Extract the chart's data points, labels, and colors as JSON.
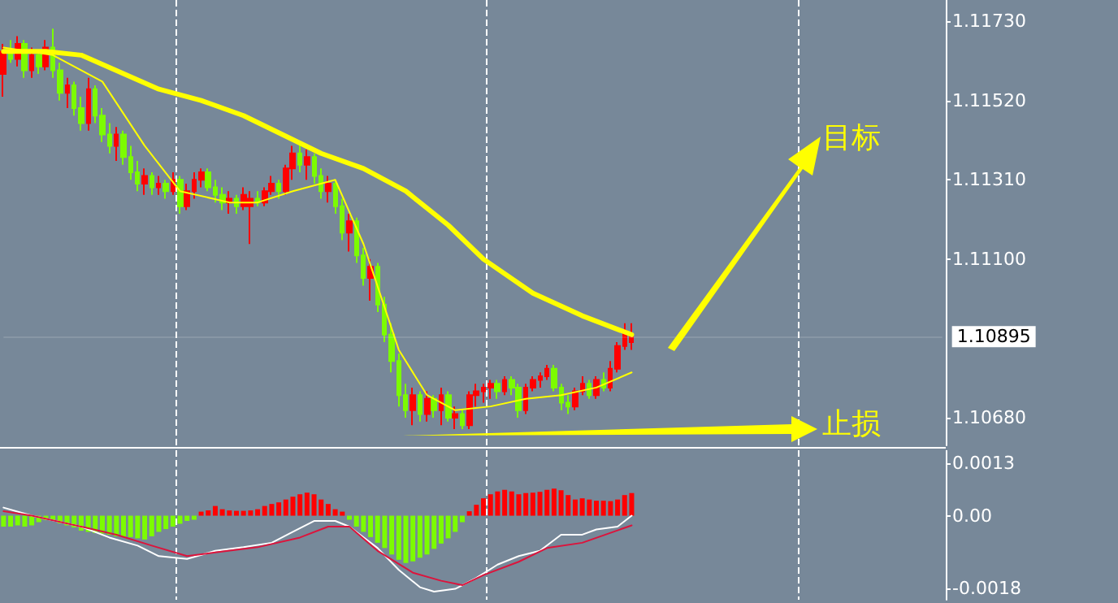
{
  "chart_data": [
    {
      "type": "candlestick",
      "categories": [
        null,
        null,
        null,
        null,
        null,
        null,
        null,
        null,
        null,
        null,
        null,
        null,
        null,
        null,
        null,
        null,
        null,
        null,
        null,
        null,
        null,
        null,
        null,
        null,
        null,
        null,
        null,
        null,
        null,
        null,
        null,
        null,
        null,
        null,
        null,
        null,
        null,
        null,
        null,
        null,
        null,
        null,
        null,
        null,
        null,
        null,
        null,
        null,
        null,
        null,
        null,
        null,
        null,
        null,
        null,
        null,
        null,
        null,
        null,
        null,
        null,
        null,
        null,
        null,
        null,
        null,
        null,
        null,
        null,
        null,
        null,
        null,
        null,
        null,
        null,
        null,
        null,
        null,
        null,
        null,
        null,
        null,
        null,
        null,
        null,
        null,
        null,
        null,
        null,
        null,
        null,
        null,
        null,
        null,
        null,
        null,
        null,
        null,
        null,
        null,
        null,
        null,
        null,
        null,
        null,
        null,
        null,
        null,
        null,
        null,
        null,
        null,
        null,
        null,
        null,
        null,
        null,
        null,
        null,
        null,
        null,
        null,
        null,
        null,
        null,
        null,
        null,
        null,
        null,
        null,
        null,
        null,
        null,
        null
      ],
      "ohlc": [
        [
          1.1159,
          1.1167,
          1.1153,
          1.1165
        ],
        [
          1.1165,
          1.1168,
          1.1162,
          1.1163
        ],
        [
          1.1163,
          1.1169,
          1.1161,
          1.1167
        ],
        [
          1.1167,
          1.1168,
          1.1158,
          1.116
        ],
        [
          1.116,
          1.1166,
          1.1158,
          1.1164
        ],
        [
          1.1164,
          1.1165,
          1.1159,
          1.1161
        ],
        [
          1.1161,
          1.1168,
          1.116,
          1.1166
        ],
        [
          1.1166,
          1.1171,
          1.1158,
          1.116
        ],
        [
          1.116,
          1.1162,
          1.1152,
          1.1154
        ],
        [
          1.1154,
          1.1158,
          1.115,
          1.1156
        ],
        [
          1.1156,
          1.1157,
          1.1148,
          1.115
        ],
        [
          1.115,
          1.1153,
          1.1144,
          1.1146
        ],
        [
          1.1146,
          1.1158,
          1.1144,
          1.1155
        ],
        [
          1.1155,
          1.1156,
          1.1146,
          1.1148
        ],
        [
          1.1148,
          1.115,
          1.1141,
          1.1143
        ],
        [
          1.1143,
          1.1146,
          1.1138,
          1.114
        ],
        [
          1.114,
          1.1145,
          1.1136,
          1.1143
        ],
        [
          1.1143,
          1.1144,
          1.1135,
          1.1137
        ],
        [
          1.1137,
          1.114,
          1.1131,
          1.1133
        ],
        [
          1.1133,
          1.1136,
          1.1128,
          1.113
        ],
        [
          1.113,
          1.1134,
          1.1127,
          1.1132
        ],
        [
          1.1132,
          1.1133,
          1.1127,
          1.1129
        ],
        [
          1.1129,
          1.1132,
          1.1127,
          1.113
        ],
        [
          1.113,
          1.1131,
          1.1126,
          1.1128
        ],
        [
          1.1128,
          1.1133,
          1.1127,
          1.1131
        ],
        [
          1.1131,
          1.1132,
          1.1122,
          1.1124
        ],
        [
          1.1124,
          1.113,
          1.1123,
          1.1128
        ],
        [
          1.1128,
          1.1133,
          1.1126,
          1.1131
        ],
        [
          1.1131,
          1.1134,
          1.1129,
          1.1133
        ],
        [
          1.1133,
          1.1134,
          1.1128,
          1.1129
        ],
        [
          1.1129,
          1.1131,
          1.1125,
          1.1127
        ],
        [
          1.1127,
          1.1129,
          1.1123,
          1.1125
        ],
        [
          1.1125,
          1.1128,
          1.1122,
          1.1126
        ],
        [
          1.1126,
          1.1127,
          1.1122,
          1.1124
        ],
        [
          1.1124,
          1.1129,
          1.1123,
          1.1127
        ],
        [
          1.1124,
          1.1128,
          1.1114,
          1.1126
        ],
        [
          1.1126,
          1.1128,
          1.1124,
          1.1125
        ],
        [
          1.1125,
          1.1129,
          1.1124,
          1.1128
        ],
        [
          1.1128,
          1.1132,
          1.1127,
          1.113
        ],
        [
          1.113,
          1.1131,
          1.1126,
          1.1128
        ],
        [
          1.1128,
          1.1135,
          1.1127,
          1.1134
        ],
        [
          1.1134,
          1.114,
          1.1131,
          1.1138
        ],
        [
          1.1138,
          1.1141,
          1.1133,
          1.1135
        ],
        [
          1.1135,
          1.1139,
          1.1131,
          1.1137
        ],
        [
          1.1137,
          1.1138,
          1.113,
          1.1132
        ],
        [
          1.1132,
          1.1134,
          1.1126,
          1.1128
        ],
        [
          1.1128,
          1.1132,
          1.1125,
          1.113
        ],
        [
          1.113,
          1.1131,
          1.1122,
          1.1124
        ],
        [
          1.1124,
          1.1126,
          1.1115,
          1.1117
        ],
        [
          1.1117,
          1.1122,
          1.1112,
          1.112
        ],
        [
          1.112,
          1.1121,
          1.1109,
          1.1111
        ],
        [
          1.1111,
          1.1113,
          1.1103,
          1.1105
        ],
        [
          1.1105,
          1.111,
          1.1099,
          1.1108
        ],
        [
          1.1108,
          1.1109,
          1.1096,
          1.1098
        ],
        [
          1.1098,
          1.11,
          1.1088,
          1.109
        ],
        [
          1.109,
          1.1093,
          1.108,
          1.1083
        ],
        [
          1.1083,
          1.1085,
          1.1071,
          1.1074
        ],
        [
          1.1074,
          1.1077,
          1.1068,
          1.107
        ],
        [
          1.107,
          1.1076,
          1.1066,
          1.1074
        ],
        [
          1.1074,
          1.1075,
          1.1067,
          1.1069
        ],
        [
          1.1069,
          1.1075,
          1.1067,
          1.1073
        ],
        [
          1.1073,
          1.1074,
          1.1068,
          1.107
        ],
        [
          1.107,
          1.1076,
          1.1066,
          1.1074
        ],
        [
          1.1074,
          1.1075,
          1.1067,
          1.1068
        ],
        [
          1.1068,
          1.1071,
          1.1065,
          1.1069
        ],
        [
          1.1069,
          1.107,
          1.1065,
          1.1066
        ],
        [
          1.1066,
          1.1075,
          1.1065,
          1.1074
        ],
        [
          1.1074,
          1.1077,
          1.1071,
          1.1075
        ],
        [
          1.1075,
          1.1077,
          1.1072,
          1.1076
        ],
        [
          1.1076,
          1.1078,
          1.1073,
          1.1077
        ],
        [
          1.1077,
          1.1078,
          1.1073,
          1.1075
        ],
        [
          1.1075,
          1.1079,
          1.1074,
          1.1078
        ],
        [
          1.1078,
          1.1079,
          1.1074,
          1.1076
        ],
        [
          1.1076,
          1.1077,
          1.1068,
          1.107
        ],
        [
          1.107,
          1.1077,
          1.1069,
          1.1076
        ],
        [
          1.1076,
          1.1079,
          1.1075,
          1.1078
        ],
        [
          1.1078,
          1.108,
          1.1076,
          1.1079
        ],
        [
          1.1079,
          1.1082,
          1.1078,
          1.1081
        ],
        [
          1.1081,
          1.1082,
          1.1075,
          1.1076
        ],
        [
          1.1076,
          1.1077,
          1.107,
          1.1072
        ],
        [
          1.1072,
          1.1074,
          1.1069,
          1.1071
        ],
        [
          1.1071,
          1.1076,
          1.107,
          1.1075
        ],
        [
          1.1075,
          1.1079,
          1.1074,
          1.1077
        ],
        [
          1.1077,
          1.1078,
          1.1073,
          1.1074
        ],
        [
          1.1074,
          1.1079,
          1.1073,
          1.1078
        ],
        [
          1.1078,
          1.108,
          1.1075,
          1.1076
        ],
        [
          1.1076,
          1.1083,
          1.1075,
          1.1081
        ],
        [
          1.1081,
          1.1088,
          1.108,
          1.1087
        ],
        [
          1.1087,
          1.1093,
          1.1086,
          1.1091
        ],
        [
          1.1088,
          1.1093,
          1.1086,
          1.10895
        ],
        null,
        null,
        null,
        null,
        null,
        null,
        null,
        null,
        null,
        null,
        null,
        null,
        null,
        null,
        null,
        null,
        null,
        null,
        null,
        null,
        null,
        null,
        null,
        null,
        null,
        null,
        null,
        null,
        null,
        null,
        null,
        null,
        null,
        null,
        null,
        null,
        null,
        null,
        null,
        null,
        null,
        null,
        null,
        null
      ],
      "colors": [
        "#ff0000",
        "#7cfc00",
        "#ff0000",
        "#7cfc00",
        "#ff0000",
        "#7cfc00",
        "#ff0000",
        "#7cfc00",
        "#7cfc00",
        "#ff0000",
        "#7cfc00",
        "#7cfc00",
        "#ff0000",
        "#7cfc00",
        "#7cfc00",
        "#7cfc00",
        "#ff0000",
        "#7cfc00",
        "#7cfc00",
        "#7cfc00",
        "#ff0000",
        "#7cfc00",
        "#ff0000",
        "#7cfc00",
        "#ff0000",
        "#7cfc00",
        "#ff0000",
        "#ff0000",
        "#ff0000",
        "#7cfc00",
        "#7cfc00",
        "#7cfc00",
        "#ff0000",
        "#7cfc00",
        "#ff0000",
        "#ff0000",
        "#7cfc00",
        "#ff0000",
        "#ff0000",
        "#7cfc00",
        "#ff0000",
        "#ff0000",
        "#7cfc00",
        "#ff0000",
        "#7cfc00",
        "#7cfc00",
        "#ff0000",
        "#7cfc00",
        "#7cfc00",
        "#ff0000",
        "#7cfc00",
        "#7cfc00",
        "#ff0000",
        "#7cfc00",
        "#7cfc00",
        "#7cfc00",
        "#7cfc00",
        "#7cfc00",
        "#ff0000",
        "#7cfc00",
        "#ff0000",
        "#7cfc00",
        "#ff0000",
        "#7cfc00",
        "#ff0000",
        "#7cfc00",
        "#ff0000",
        "#ff0000",
        "#ff0000",
        "#ff0000",
        "#7cfc00",
        "#ff0000",
        "#7cfc00",
        "#7cfc00",
        "#ff0000",
        "#ff0000",
        "#ff0000",
        "#ff0000",
        "#7cfc00",
        "#7cfc00",
        "#7cfc00",
        "#ff0000",
        "#ff0000",
        "#7cfc00",
        "#ff0000",
        "#7cfc00",
        "#ff0000",
        "#ff0000",
        "#ff0000",
        "#ff0000",
        null,
        null,
        null,
        null,
        null,
        null,
        null,
        null,
        null,
        null,
        null,
        null,
        null,
        null,
        null,
        null,
        null,
        null,
        null,
        null,
        null,
        null,
        null,
        null,
        null,
        null,
        null,
        null,
        null,
        null,
        null,
        null,
        null,
        null,
        null,
        null,
        null,
        null,
        null,
        null,
        null,
        null,
        null,
        null
      ],
      "series": [
        {
          "type": "line",
          "color": "#ffff00",
          "values": [
            1.1165,
            null,
            null,
            null,
            null,
            null,
            1.1165,
            null,
            null,
            null,
            null,
            1.1164,
            null,
            null,
            null,
            null,
            null,
            null,
            null,
            null,
            null,
            null,
            1.1155,
            null,
            null,
            null,
            null,
            null,
            1.1152,
            null,
            null,
            null,
            null,
            null,
            1.1148,
            null,
            null,
            null,
            null,
            null,
            null,
            null,
            null,
            null,
            null,
            1.1138,
            null,
            null,
            null,
            null,
            null,
            1.1134,
            null,
            null,
            null,
            null,
            null,
            1.1128,
            null,
            null,
            null,
            null,
            null,
            1.1119,
            null,
            null,
            null,
            null,
            1.111,
            null,
            null,
            null,
            null,
            null,
            null,
            1.1101,
            null,
            null,
            null,
            null,
            null,
            null,
            1.1095,
            null,
            null,
            null,
            null,
            null,
            null,
            1.109,
            null,
            null,
            null,
            null,
            null,
            null,
            null,
            null,
            null,
            null,
            null,
            null,
            null,
            null,
            null,
            null,
            null,
            null,
            null,
            null,
            null,
            null,
            null,
            null,
            null,
            null,
            null,
            null,
            null,
            null,
            null,
            null,
            null,
            null,
            null,
            null,
            null,
            null,
            null,
            null,
            null,
            null,
            null,
            null
          ]
        },
        {
          "type": "line",
          "color": "#ffff00",
          "values": [
            1.1166,
            null,
            null,
            null,
            null,
            null,
            null,
            1.1164,
            null,
            null,
            null,
            null,
            null,
            null,
            1.1157,
            null,
            null,
            null,
            null,
            null,
            1.114,
            null,
            null,
            null,
            null,
            1.1128,
            null,
            null,
            null,
            null,
            null,
            null,
            1.1125,
            null,
            null,
            null,
            1.1125,
            null,
            null,
            null,
            null,
            1.1128,
            null,
            null,
            null,
            null,
            null,
            1.1131,
            null,
            null,
            null,
            1.1114,
            null,
            null,
            null,
            null,
            1.1086,
            null,
            null,
            null,
            1.1074,
            null,
            null,
            null,
            1.107,
            null,
            null,
            null,
            null,
            1.1071,
            null,
            null,
            null,
            null,
            1.1073,
            null,
            null,
            null,
            null,
            1.1074,
            null,
            null,
            null,
            null,
            1.1076,
            null,
            null,
            null,
            null,
            1.108,
            null,
            null,
            null,
            null,
            null,
            null,
            null,
            null,
            null,
            null,
            null,
            null,
            null,
            null,
            null,
            null,
            null,
            null,
            null,
            null,
            null,
            null,
            null,
            null,
            null,
            null,
            null,
            null,
            null,
            null,
            null,
            null,
            null,
            null,
            null,
            null,
            null,
            null,
            null,
            null,
            null,
            null,
            null,
            null
          ]
        }
      ],
      "marker": "none",
      "ylim": [
        1.10607,
        1.11786
      ],
      "yticks": [
        {
          "value": 1.1068,
          "label": "1.10680"
        },
        {
          "value": 1.111,
          "label": "1.11100"
        },
        {
          "value": 1.1131,
          "label": "1.11310"
        },
        {
          "value": 1.1152,
          "label": "1.11520"
        },
        {
          "value": 1.1173,
          "label": "1.11730"
        }
      ],
      "grid": "x",
      "tick_labels": "y",
      "ref_lines": [
        {
          "axis": "y",
          "value": 1.10895,
          "label": "1.10895"
        }
      ],
      "annotations": [
        "目标",
        "止损"
      ]
    },
    {
      "type": "bar",
      "categories": [
        null,
        null,
        null,
        null,
        null,
        null,
        null,
        null,
        null,
        null,
        null,
        null,
        null,
        null,
        null,
        null,
        null,
        null,
        null,
        null,
        null,
        null,
        null,
        null,
        null,
        null,
        null,
        null,
        null,
        null,
        null,
        null,
        null,
        null,
        null,
        null,
        null,
        null,
        null,
        null,
        null,
        null,
        null,
        null,
        null,
        null,
        null,
        null,
        null,
        null,
        null,
        null,
        null,
        null,
        null,
        null,
        null,
        null,
        null,
        null,
        null,
        null,
        null,
        null,
        null,
        null,
        null,
        null,
        null,
        null,
        null,
        null,
        null,
        null,
        null,
        null,
        null,
        null,
        null,
        null,
        null,
        null,
        null,
        null,
        null,
        null,
        null,
        null,
        null,
        null,
        null,
        null,
        null,
        null,
        null,
        null,
        null,
        null,
        null,
        null,
        null,
        null,
        null,
        null,
        null,
        null,
        null,
        null,
        null,
        null,
        null,
        null,
        null,
        null,
        null,
        null,
        null,
        null,
        null,
        null,
        null,
        null,
        null,
        null,
        null,
        null,
        null,
        null,
        null,
        null,
        null,
        null,
        null,
        null
      ],
      "series": [
        {
          "type": "bar",
          "values": [
            -0.00027,
            -0.00027,
            -0.00024,
            -0.00027,
            -0.00024,
            -0.00016,
            -0.00011,
            -0.00013,
            -0.00019,
            -0.00024,
            -0.00029,
            -0.00037,
            -0.0004,
            -0.00043,
            -0.00044,
            -0.00047,
            -0.00051,
            -0.00053,
            -0.00053,
            -0.00056,
            -0.00059,
            -0.00051,
            -0.0004,
            -0.00033,
            -0.00027,
            -0.0002,
            -0.00013,
            -0.0001,
            0.0001,
            0.00013,
            0.00024,
            0.00016,
            0.00013,
            0.00012,
            0.00012,
            0.00013,
            0.00016,
            0.00024,
            0.00029,
            0.00033,
            0.0004,
            0.00047,
            0.00053,
            0.00057,
            0.00053,
            0.0004,
            0.00029,
            0.00016,
            0.0001,
            -0.0001,
            -0.00027,
            -0.0004,
            -0.00053,
            -0.00067,
            -0.0008,
            -0.00096,
            -0.00109,
            -0.00117,
            -0.00113,
            -0.00104,
            -0.00096,
            -0.00082,
            -0.00069,
            -0.00056,
            -0.0004,
            -0.00016,
            0.00011,
            0.00027,
            0.00043,
            0.00053,
            0.0006,
            0.00064,
            0.0006,
            0.00053,
            0.00056,
            0.00057,
            0.00059,
            0.00064,
            0.00067,
            0.00063,
            0.00051,
            0.0004,
            0.00043,
            0.0004,
            0.00037,
            0.00037,
            0.00036,
            0.0004,
            0.00051,
            0.00056,
            null,
            null,
            null,
            null,
            null,
            null,
            null,
            null,
            null,
            null,
            null,
            null,
            null,
            null,
            null,
            null,
            null,
            null,
            null,
            null,
            null,
            null,
            null,
            null,
            null,
            null,
            null,
            null,
            null,
            null,
            null,
            null,
            null,
            null,
            null,
            null,
            null,
            null,
            null,
            null,
            null,
            null,
            null,
            null
          ],
          "colors": [
            "#7cfc00",
            "#7cfc00",
            "#7cfc00",
            "#7cfc00",
            "#7cfc00",
            "#7cfc00",
            "#7cfc00",
            "#7cfc00",
            "#7cfc00",
            "#7cfc00",
            "#7cfc00",
            "#7cfc00",
            "#7cfc00",
            "#7cfc00",
            "#7cfc00",
            "#7cfc00",
            "#7cfc00",
            "#7cfc00",
            "#7cfc00",
            "#7cfc00",
            "#7cfc00",
            "#7cfc00",
            "#7cfc00",
            "#7cfc00",
            "#7cfc00",
            "#7cfc00",
            "#7cfc00",
            "#7cfc00",
            "#ff0000",
            "#ff0000",
            "#ff0000",
            "#ff0000",
            "#ff0000",
            "#ff0000",
            "#ff0000",
            "#ff0000",
            "#ff0000",
            "#ff0000",
            "#ff0000",
            "#ff0000",
            "#ff0000",
            "#ff0000",
            "#ff0000",
            "#ff0000",
            "#ff0000",
            "#ff0000",
            "#ff0000",
            "#ff0000",
            "#ff0000",
            "#7cfc00",
            "#7cfc00",
            "#7cfc00",
            "#7cfc00",
            "#7cfc00",
            "#7cfc00",
            "#7cfc00",
            "#7cfc00",
            "#7cfc00",
            "#7cfc00",
            "#7cfc00",
            "#7cfc00",
            "#7cfc00",
            "#7cfc00",
            "#7cfc00",
            "#7cfc00",
            "#7cfc00",
            "#ff0000",
            "#ff0000",
            "#ff0000",
            "#ff0000",
            "#ff0000",
            "#ff0000",
            "#ff0000",
            "#ff0000",
            "#ff0000",
            "#ff0000",
            "#ff0000",
            "#ff0000",
            "#ff0000",
            "#ff0000",
            "#ff0000",
            "#ff0000",
            "#ff0000",
            "#ff0000",
            "#ff0000",
            "#ff0000",
            "#ff0000",
            "#ff0000",
            "#ff0000",
            "#ff0000",
            null,
            null,
            null,
            null,
            null,
            null,
            null,
            null,
            null,
            null,
            null,
            null,
            null,
            null,
            null,
            null,
            null,
            null,
            null,
            null,
            null,
            null,
            null,
            null,
            null,
            null,
            null,
            null,
            null,
            null,
            null,
            null,
            null,
            null,
            null,
            null,
            null,
            null,
            null,
            null,
            null,
            null,
            null,
            null
          ]
        },
        {
          "type": "line",
          "color": "#ffffff",
          "values": [
            0.0002,
            null,
            null,
            null,
            0,
            null,
            null,
            null,
            null,
            null,
            null,
            -0.00027,
            null,
            null,
            null,
            -0.00054,
            null,
            null,
            null,
            -0.00074,
            null,
            null,
            -0.001,
            null,
            null,
            null,
            -0.00107,
            null,
            null,
            null,
            -0.00087,
            null,
            null,
            null,
            -0.00078,
            null,
            null,
            null,
            -0.00067,
            null,
            null,
            -0.0004,
            null,
            null,
            -0.00013,
            null,
            null,
            -0.00013,
            null,
            -0.00027,
            null,
            null,
            null,
            -0.0008,
            null,
            null,
            -0.00134,
            null,
            null,
            -0.00177,
            null,
            -0.00188,
            null,
            null,
            -0.00181,
            null,
            null,
            -0.00154,
            null,
            null,
            -0.00121,
            null,
            null,
            -0.001,
            null,
            null,
            -0.00087,
            null,
            null,
            -0.00047,
            null,
            null,
            -0.00047,
            null,
            -0.00034,
            null,
            null,
            -0.00027,
            null,
            0,
            null,
            null,
            null,
            null,
            null,
            null,
            null,
            null,
            null,
            null,
            null,
            null,
            null,
            null,
            null,
            null,
            null,
            null,
            null,
            null,
            null,
            null,
            null,
            null,
            null,
            null,
            null,
            null,
            null,
            null,
            null,
            null,
            null,
            null,
            null,
            null,
            null,
            null,
            null,
            null,
            null,
            null,
            null,
            null
          ]
        },
        {
          "type": "line",
          "color": "#dc143c",
          "values": [
            0.00011,
            null,
            null,
            null,
            0,
            null,
            null,
            null,
            null,
            null,
            null,
            -0.00027,
            null,
            null,
            null,
            null,
            -0.00047,
            null,
            null,
            null,
            null,
            -0.00074,
            null,
            null,
            null,
            null,
            -0.001,
            null,
            null,
            null,
            -0.00091,
            null,
            null,
            null,
            null,
            null,
            -0.00078,
            null,
            null,
            null,
            null,
            null,
            -0.00054,
            null,
            null,
            null,
            -0.00027,
            null,
            null,
            -0.00027,
            null,
            null,
            null,
            -0.00087,
            null,
            null,
            null,
            null,
            -0.00141,
            null,
            null,
            null,
            -0.00161,
            null,
            null,
            -0.00172,
            null,
            null,
            -0.00147,
            null,
            null,
            null,
            null,
            -0.00114,
            null,
            null,
            null,
            -0.0008,
            null,
            null,
            null,
            null,
            -0.00067,
            null,
            null,
            null,
            null,
            null,
            null,
            -0.00024,
            null,
            null,
            null,
            null,
            null,
            null,
            null,
            null,
            null,
            null,
            null,
            null,
            null,
            null,
            null,
            null,
            null,
            null,
            null,
            null,
            null,
            null,
            null,
            null,
            null,
            null,
            null,
            null,
            null,
            null,
            null,
            null,
            null,
            null,
            null,
            null,
            null,
            null,
            null,
            null,
            null,
            null,
            null,
            null
          ]
        }
      ],
      "marker": "none",
      "ylim": [
        -0.00208,
        0.00162
      ],
      "yticks": [
        {
          "value": 0.0013,
          "label": "0.0013"
        },
        {
          "value": 0,
          "label": "0.00"
        },
        {
          "value": -0.0018,
          "label": "-0.0018"
        }
      ],
      "grid": "x",
      "tick_labels": "y"
    }
  ]
}
